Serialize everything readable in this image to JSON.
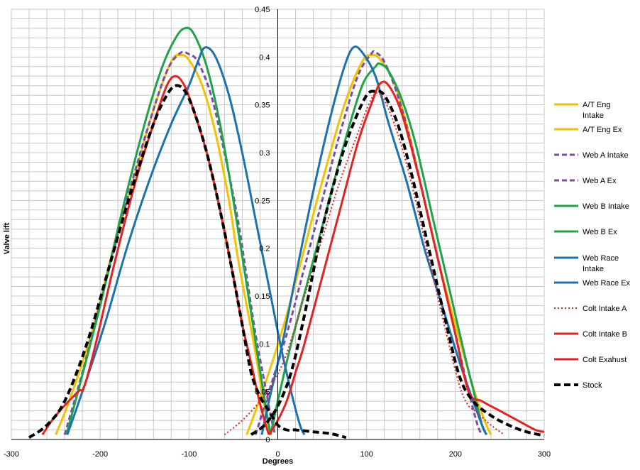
{
  "chart_data": {
    "type": "line",
    "title": "",
    "xlabel": "Degrees",
    "ylabel": "Valve lift",
    "xlim": [
      -300,
      300
    ],
    "ylim": [
      0,
      0.45
    ],
    "x_ticks": [
      -300,
      -200,
      -100,
      0,
      100,
      200,
      300
    ],
    "y_ticks": [
      0,
      0.05,
      0.1,
      0.15,
      0.2,
      0.25,
      0.3,
      0.35,
      0.4,
      0.45
    ],
    "y_tick_labels": [
      "0",
      "0.05",
      "0.1",
      "0.15",
      "0.2",
      "0.25",
      "0.3",
      "0.35",
      "0.4",
      "0.45"
    ],
    "grid": true,
    "legend_position": "right",
    "series": [
      {
        "name": "A/T Eng Intake",
        "color": "#F2C200",
        "dash": "solid",
        "x": [
          -250,
          -235,
          -210,
          -185,
          -160,
          -140,
          -120,
          -110,
          -100,
          -85,
          -70,
          -55,
          -45,
          -35,
          -25,
          -18,
          -12,
          -8
        ],
        "y": [
          0.005,
          0.04,
          0.11,
          0.2,
          0.28,
          0.345,
          0.395,
          0.402,
          0.397,
          0.37,
          0.32,
          0.25,
          0.19,
          0.14,
          0.09,
          0.05,
          0.02,
          0.005
        ]
      },
      {
        "name": "A/T Eng Ex",
        "color": "#F2C200",
        "dash": "solid",
        "x": [
          -35,
          -25,
          -10,
          10,
          30,
          50,
          75,
          95,
          105,
          115,
          130,
          145,
          160,
          180,
          200,
          215,
          225,
          235,
          240
        ],
        "y": [
          0.005,
          0.03,
          0.07,
          0.13,
          0.2,
          0.27,
          0.35,
          0.395,
          0.402,
          0.398,
          0.375,
          0.33,
          0.27,
          0.19,
          0.12,
          0.07,
          0.04,
          0.015,
          0.005
        ]
      },
      {
        "name": "Web A Intake",
        "color": "#7A4FA6",
        "dash": "dash",
        "x": [
          -240,
          -220,
          -195,
          -170,
          -145,
          -125,
          -110,
          -100,
          -90,
          -75,
          -60,
          -45,
          -35,
          -25,
          -15,
          -8,
          -3
        ],
        "y": [
          0.005,
          0.07,
          0.16,
          0.25,
          0.33,
          0.385,
          0.404,
          0.403,
          0.395,
          0.36,
          0.3,
          0.23,
          0.17,
          0.11,
          0.06,
          0.025,
          0.005
        ]
      },
      {
        "name": "Web A Ex",
        "color": "#7A4FA6",
        "dash": "dash",
        "x": [
          -25,
          -10,
          10,
          30,
          50,
          70,
          90,
          105,
          110,
          120,
          135,
          150,
          170,
          190,
          205,
          215,
          225,
          230
        ],
        "y": [
          0.005,
          0.05,
          0.11,
          0.18,
          0.25,
          0.32,
          0.38,
          0.403,
          0.405,
          0.395,
          0.36,
          0.31,
          0.23,
          0.15,
          0.09,
          0.05,
          0.015,
          0.005
        ]
      },
      {
        "name": "Web B Intake",
        "color": "#1FA34A",
        "dash": "solid",
        "x": [
          -238,
          -225,
          -200,
          -175,
          -150,
          -130,
          -115,
          -105,
          -95,
          -80,
          -65,
          -50,
          -38,
          -28,
          -18,
          -12,
          -8
        ],
        "y": [
          0.005,
          0.05,
          0.14,
          0.24,
          0.33,
          0.39,
          0.42,
          0.43,
          0.425,
          0.39,
          0.33,
          0.25,
          0.18,
          0.12,
          0.06,
          0.025,
          0.005
        ]
      },
      {
        "name": "Web B Ex",
        "color": "#1FA34A",
        "dash": "solid",
        "x": [
          -8,
          0,
          15,
          35,
          55,
          75,
          95,
          110,
          115,
          125,
          140,
          155,
          175,
          195,
          210,
          222,
          230,
          235
        ],
        "y": [
          0.005,
          0.04,
          0.1,
          0.17,
          0.24,
          0.31,
          0.37,
          0.39,
          0.393,
          0.385,
          0.355,
          0.31,
          0.23,
          0.15,
          0.09,
          0.045,
          0.015,
          0.005
        ]
      },
      {
        "name": "Web Race Intake",
        "color": "#1C71AE",
        "dash": "solid",
        "x": [
          -237,
          -220,
          -195,
          -170,
          -145,
          -120,
          -100,
          -90,
          -82,
          -70,
          -55,
          -40,
          -25,
          -10,
          5,
          15,
          25,
          30
        ],
        "y": [
          0.005,
          0.05,
          0.12,
          0.2,
          0.27,
          0.33,
          0.37,
          0.395,
          0.41,
          0.4,
          0.36,
          0.3,
          0.23,
          0.16,
          0.09,
          0.05,
          0.015,
          0.005
        ]
      },
      {
        "name": "Web Race Ex",
        "color": "#1C71AE",
        "dash": "solid",
        "x": [
          -18,
          -10,
          5,
          20,
          40,
          60,
          75,
          85,
          95,
          110,
          125,
          145,
          165,
          185,
          205,
          220,
          230,
          235
        ],
        "y": [
          0.005,
          0.04,
          0.1,
          0.17,
          0.26,
          0.34,
          0.39,
          0.41,
          0.405,
          0.38,
          0.33,
          0.27,
          0.2,
          0.14,
          0.08,
          0.04,
          0.015,
          0.005
        ]
      },
      {
        "name": "Colt Intake  A",
        "color": "#E32222",
        "dash": "dot",
        "x": [
          -60,
          -40,
          -20,
          -5,
          10,
          30,
          50,
          70,
          90,
          100,
          110,
          120,
          135,
          150,
          170,
          190,
          205,
          215,
          222,
          240,
          255
        ],
        "y": [
          0.005,
          0.02,
          0.04,
          0.06,
          0.09,
          0.15,
          0.21,
          0.27,
          0.32,
          0.345,
          0.362,
          0.355,
          0.32,
          0.27,
          0.19,
          0.11,
          0.055,
          0.035,
          0.03,
          0.015,
          0.005
        ]
      },
      {
        "name": "Colt Intake  B",
        "color": "#E32222",
        "dash": "solid",
        "x": [
          -265,
          -250,
          -225,
          -218,
          -205,
          -185,
          -160,
          -140,
          -125,
          -115,
          -105,
          -95,
          -80,
          -65,
          -50,
          -40,
          -30,
          -22,
          -15,
          -10
        ],
        "y": [
          0.005,
          0.025,
          0.05,
          0.055,
          0.1,
          0.18,
          0.27,
          0.33,
          0.37,
          0.38,
          0.37,
          0.345,
          0.3,
          0.24,
          0.17,
          0.12,
          0.08,
          0.045,
          0.02,
          0.005
        ]
      },
      {
        "name": "Colt Exahust",
        "color": "#E32222",
        "dash": "solid",
        "x": [
          -10,
          0,
          10,
          20,
          30,
          50,
          70,
          90,
          105,
          115,
          125,
          140,
          160,
          180,
          200,
          215,
          230,
          250,
          270,
          290,
          300
        ],
        "y": [
          0.005,
          0.02,
          0.04,
          0.07,
          0.1,
          0.17,
          0.24,
          0.31,
          0.35,
          0.372,
          0.37,
          0.34,
          0.27,
          0.19,
          0.11,
          0.05,
          0.04,
          0.03,
          0.02,
          0.01,
          0.008
        ]
      },
      {
        "name": "Stock",
        "color": "#000000",
        "dash": "bigdash",
        "x": [
          -280,
          -260,
          -240,
          -215,
          -190,
          -165,
          -140,
          -125,
          -115,
          -105,
          -95,
          -80,
          -65,
          -50,
          -40,
          -30,
          -20,
          -10,
          0,
          10,
          20,
          40,
          60,
          77
        ],
        "y": [
          0.002,
          0.015,
          0.04,
          0.1,
          0.18,
          0.26,
          0.33,
          0.36,
          0.37,
          0.365,
          0.345,
          0.3,
          0.24,
          0.17,
          0.12,
          0.07,
          0.045,
          0.03,
          0.015,
          0.01,
          0.01,
          0.008,
          0.006,
          0.002
        ]
      },
      {
        "name": "",
        "color": "#000000",
        "dash": "bigdash",
        "legend": false,
        "x": [
          -30,
          -15,
          0,
          15,
          30,
          50,
          70,
          85,
          100,
          110,
          120,
          135,
          150,
          170,
          190,
          205,
          220,
          240,
          260,
          280,
          300
        ],
        "y": [
          0.005,
          0.015,
          0.035,
          0.07,
          0.13,
          0.22,
          0.29,
          0.33,
          0.36,
          0.364,
          0.36,
          0.33,
          0.28,
          0.2,
          0.12,
          0.065,
          0.04,
          0.025,
          0.015,
          0.008,
          0.004
        ]
      }
    ]
  }
}
